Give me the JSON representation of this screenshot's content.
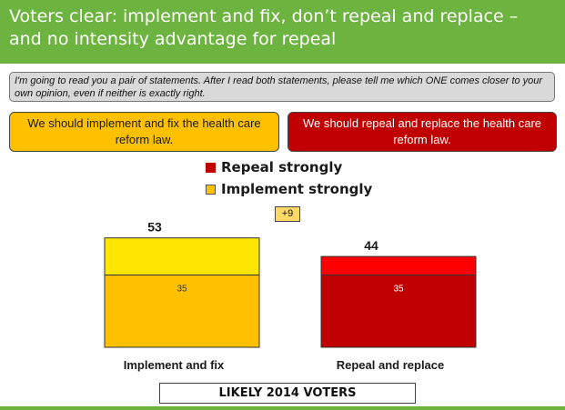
{
  "header": {
    "title": "Voters clear: implement and fix, don’t repeal and replace – and no intensity advantage for repeal"
  },
  "question": "I'm going to read you a pair of statements. After I read both statements, please tell me which ONE comes closer to your own opinion, even if neither is exactly right.",
  "statements": {
    "left": "We should implement and fix the health care reform law.",
    "right": "We should repeal and replace the health care reform law."
  },
  "footer_label": "LIKELY 2014 VOTERS",
  "colors": {
    "green": "#6db33f",
    "implement_strong": "#ffc000",
    "implement_total": "#ffe600",
    "repeal_strong": "#c00000",
    "repeal_total": "#ff0000"
  },
  "chart_data": {
    "type": "bar",
    "stacked": true,
    "categories": [
      "Implement and fix",
      "Repeal and replace"
    ],
    "totals": [
      53,
      44
    ],
    "strongly": [
      35,
      35
    ],
    "legend": [
      "Repeal strongly",
      "Implement strongly"
    ],
    "difference_label": "+9",
    "ylim": [
      0,
      60
    ]
  }
}
